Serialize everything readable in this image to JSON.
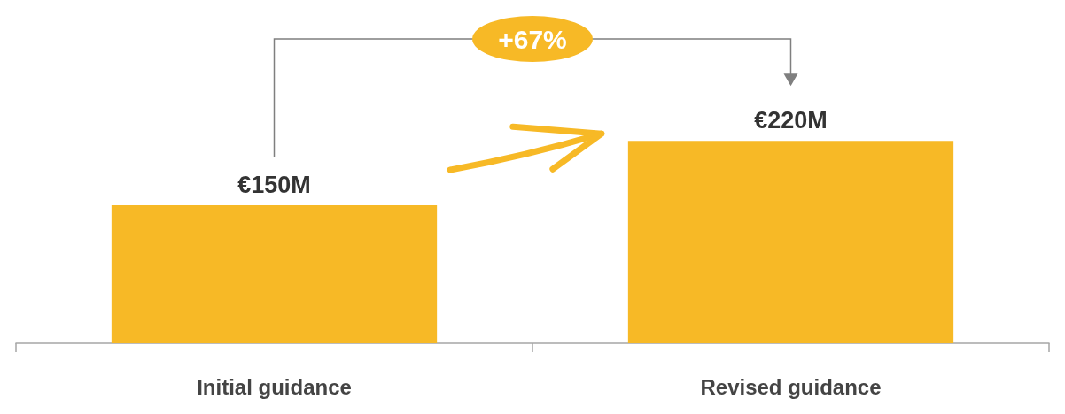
{
  "chart_data": {
    "type": "bar",
    "categories": [
      "Initial guidance",
      "Revised guidance"
    ],
    "values": [
      150,
      220
    ],
    "color": "#f7b926",
    "value_labels": [
      "€150M",
      "€220M"
    ],
    "annotations": [
      "+67%"
    ]
  }
}
